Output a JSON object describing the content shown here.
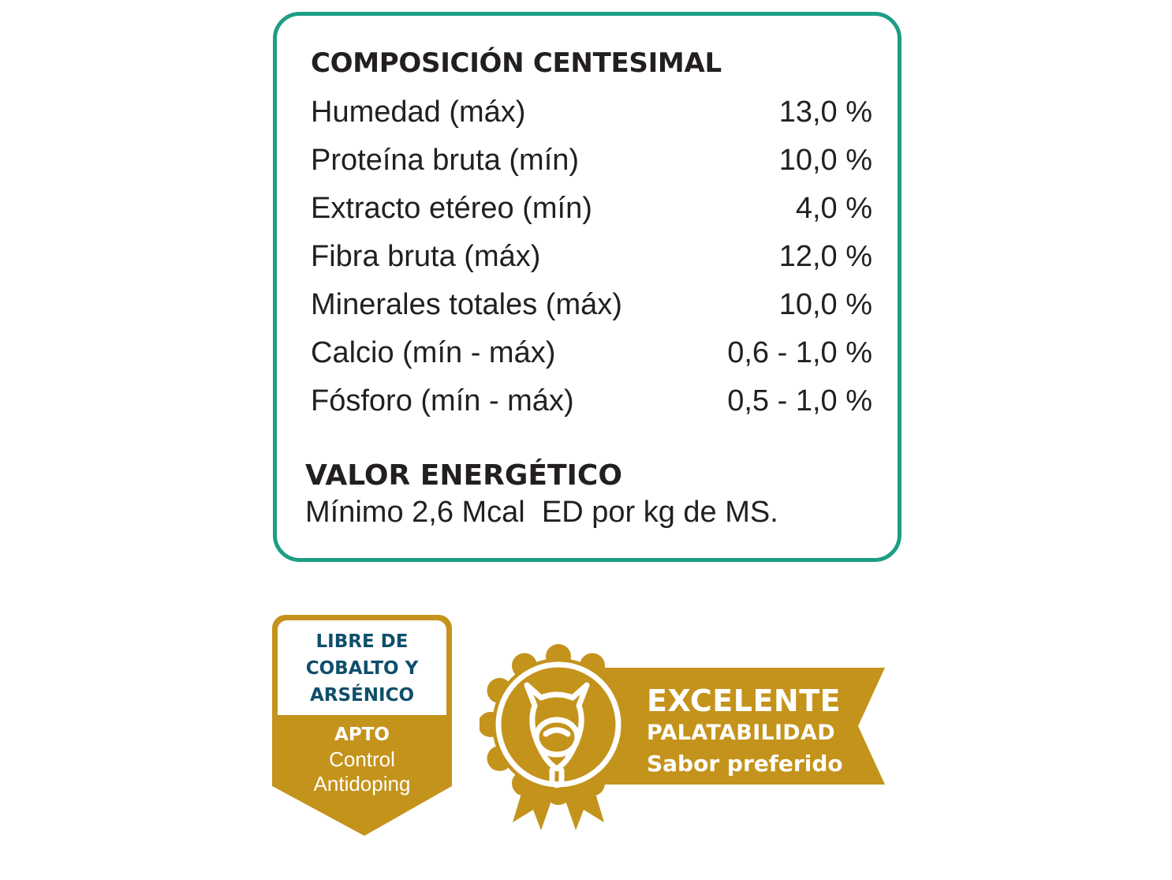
{
  "composition": {
    "title": "COMPOSICIÓN CENTESIMAL",
    "rows": [
      {
        "label": "Humedad (máx)",
        "value": "13,0 %"
      },
      {
        "label": "Proteína bruta (mín)",
        "value": "10,0 %"
      },
      {
        "label": "Extracto etéreo (mín)",
        "value": "4,0 %"
      },
      {
        "label": "Fibra bruta (máx)",
        "value": "12,0 %"
      },
      {
        "label": "Minerales totales (máx)",
        "value": "10,0 %"
      },
      {
        "label": "Calcio (mín - máx)",
        "value": "0,6 - 1,0 %"
      },
      {
        "label": "Fósforo (mín - máx)",
        "value": "0,5 - 1,0 %"
      }
    ]
  },
  "energy": {
    "title": "VALOR ENERGÉTICO",
    "text": "Mínimo 2,6 Mcal  ED por kg de MS."
  },
  "free_badge": {
    "top_lines": [
      "LIBRE DE",
      "COBALTO Y",
      "ARSÉNICO"
    ],
    "apto": "APTO",
    "lines": [
      "Control",
      "Antidoping"
    ]
  },
  "palatability_badge": {
    "line1": "EXCELENTE",
    "line2": "PALATABILIDAD",
    "line3": "Sabor preferido",
    "icon": "horse-head-icon"
  },
  "colors": {
    "card_border": "#1d9e85",
    "text": "#231f20",
    "gold": "#c4931c",
    "navy": "#0f4f6a"
  }
}
